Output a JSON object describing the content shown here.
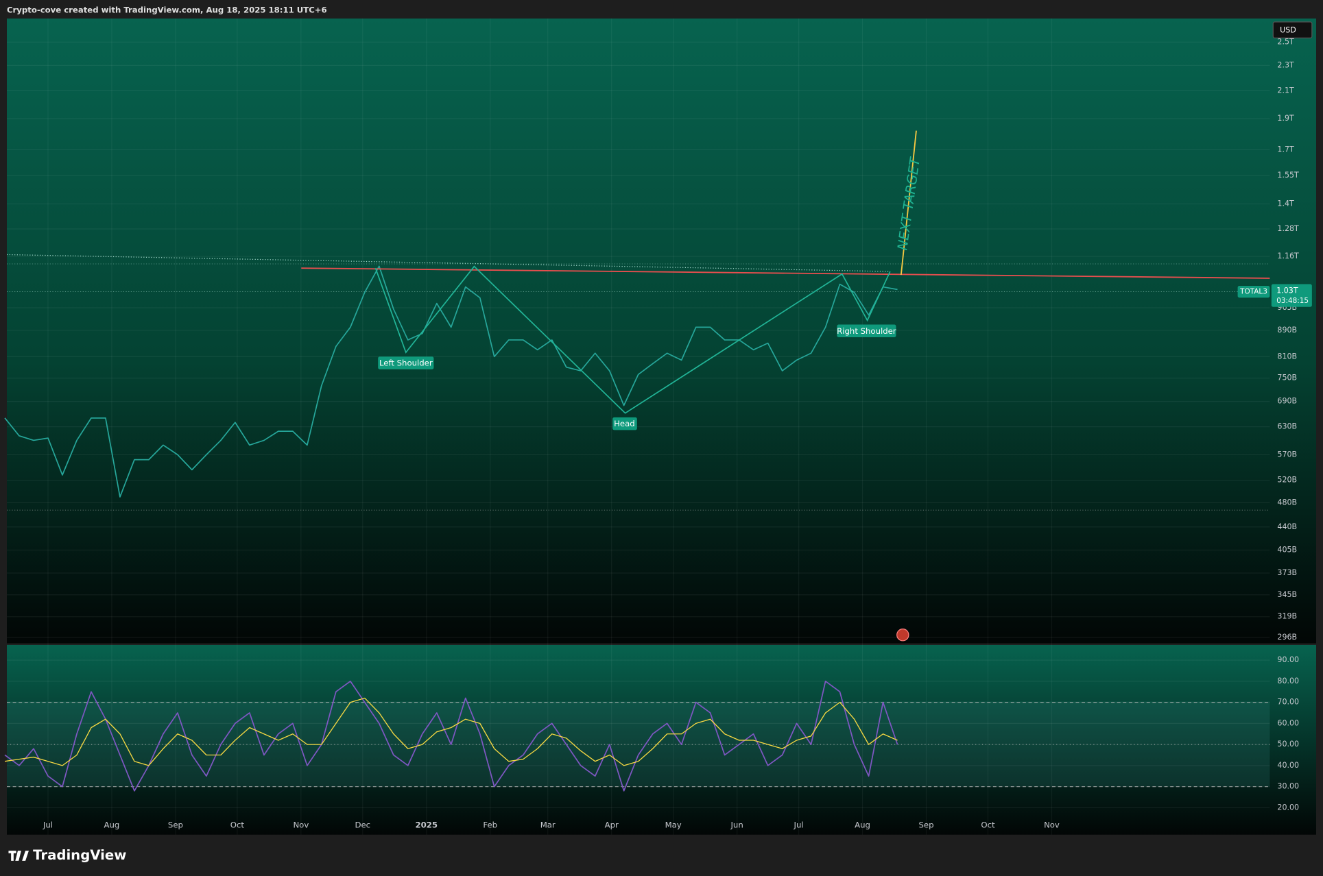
{
  "header": {
    "text": "Crypto-cove created with TradingView.com, Aug 18, 2025 18:11 UTC+6",
    "logo": "TradingView"
  },
  "chart_data": [
    {
      "type": "line",
      "symbol": "TOTAL3",
      "currency": "USD",
      "last_price_label": "1.03T",
      "countdown": "03:48:15",
      "log_scale": true,
      "grid": true,
      "annotations": {
        "left_shoulder": "Left Shoulder",
        "head": "Head",
        "right_shoulder": "Right Shoulder",
        "target": "NEXT TARGET"
      },
      "xlim": [
        "2024-06-11",
        "2026-02-15"
      ],
      "ylim": [
        290000000000,
        2720000000000
      ],
      "yticks": [
        {
          "value": 2500000000000,
          "label": "2.5T"
        },
        {
          "value": 2300000000000,
          "label": "2.3T"
        },
        {
          "value": 2100000000000,
          "label": "2.1T"
        },
        {
          "value": 1900000000000,
          "label": "1.9T"
        },
        {
          "value": 1700000000000,
          "label": "1.7T"
        },
        {
          "value": 1550000000000,
          "label": "1.55T"
        },
        {
          "value": 1400000000000,
          "label": "1.4T"
        },
        {
          "value": 1280000000000,
          "label": "1.28T"
        },
        {
          "value": 1160000000000,
          "label": "1.16T"
        },
        {
          "value": 965000000000,
          "label": "965B"
        },
        {
          "value": 890000000000,
          "label": "890B"
        },
        {
          "value": 810000000000,
          "label": "810B"
        },
        {
          "value": 750000000000,
          "label": "750B"
        },
        {
          "value": 690000000000,
          "label": "690B"
        },
        {
          "value": 630000000000,
          "label": "630B"
        },
        {
          "value": 570000000000,
          "label": "570B"
        },
        {
          "value": 520000000000,
          "label": "520B"
        },
        {
          "value": 480000000000,
          "label": "480B"
        },
        {
          "value": 440000000000,
          "label": "440B"
        },
        {
          "value": 405000000000,
          "label": "405B"
        },
        {
          "value": 373000000000,
          "label": "373B"
        },
        {
          "value": 345000000000,
          "label": "345B"
        },
        {
          "value": 319000000000,
          "label": "319B"
        },
        {
          "value": 296000000000,
          "label": "296B"
        }
      ],
      "x": [
        "2024-06-10",
        "2024-06-17",
        "2024-06-24",
        "2024-07-01",
        "2024-07-08",
        "2024-07-15",
        "2024-07-22",
        "2024-07-29",
        "2024-08-05",
        "2024-08-12",
        "2024-08-19",
        "2024-08-26",
        "2024-09-02",
        "2024-09-09",
        "2024-09-16",
        "2024-09-23",
        "2024-09-30",
        "2024-10-07",
        "2024-10-14",
        "2024-10-21",
        "2024-10-28",
        "2024-11-04",
        "2024-11-11",
        "2024-11-18",
        "2024-11-25",
        "2024-12-02",
        "2024-12-09",
        "2024-12-16",
        "2024-12-23",
        "2024-12-30",
        "2025-01-06",
        "2025-01-13",
        "2025-01-20",
        "2025-01-27",
        "2025-02-03",
        "2025-02-10",
        "2025-02-17",
        "2025-02-24",
        "2025-03-03",
        "2025-03-10",
        "2025-03-17",
        "2025-03-24",
        "2025-03-31",
        "2025-04-07",
        "2025-04-14",
        "2025-04-21",
        "2025-04-28",
        "2025-05-05",
        "2025-05-12",
        "2025-05-19",
        "2025-05-26",
        "2025-06-02",
        "2025-06-09",
        "2025-06-16",
        "2025-06-23",
        "2025-06-30",
        "2025-07-07",
        "2025-07-14",
        "2025-07-21",
        "2025-07-28",
        "2025-08-04",
        "2025-08-11",
        "2025-08-18"
      ],
      "series": [
        {
          "name": "TOTAL3",
          "color": "#26a69a",
          "values": [
            650000000000,
            610000000000,
            600000000000,
            605000000000,
            530000000000,
            600000000000,
            650000000000,
            650000000000,
            490000000000,
            560000000000,
            560000000000,
            590000000000,
            570000000000,
            540000000000,
            570000000000,
            600000000000,
            640000000000,
            590000000000,
            600000000000,
            620000000000,
            620000000000,
            590000000000,
            730000000000,
            840000000000,
            900000000000,
            1020000000000,
            1120000000000,
            960000000000,
            860000000000,
            880000000000,
            980000000000,
            900000000000,
            1040000000000,
            1000000000000,
            810000000000,
            860000000000,
            860000000000,
            830000000000,
            860000000000,
            780000000000,
            770000000000,
            820000000000,
            770000000000,
            680000000000,
            760000000000,
            790000000000,
            820000000000,
            800000000000,
            900000000000,
            900000000000,
            860000000000,
            860000000000,
            830000000000,
            850000000000,
            770000000000,
            800000000000,
            820000000000,
            900000000000,
            1050000000000,
            1020000000000,
            940000000000,
            1040000000000,
            1030000000000
          ]
        }
      ]
    },
    {
      "type": "line",
      "grid": true,
      "xlim": [
        "2024-06-11",
        "2026-02-15"
      ],
      "ylim": [
        7.2,
        97.2
      ],
      "levels": [
        70,
        50,
        30
      ],
      "yticks": [
        {
          "value": 90,
          "label": "90.00"
        },
        {
          "value": 80,
          "label": "80.00"
        },
        {
          "value": 70,
          "label": "70.00"
        },
        {
          "value": 60,
          "label": "60.00"
        },
        {
          "value": 50,
          "label": "50.00"
        },
        {
          "value": 40,
          "label": "40.00"
        },
        {
          "value": 30,
          "label": "30.00"
        },
        {
          "value": 20,
          "label": "20.00"
        }
      ],
      "xticks": [
        {
          "value": "2024-07-01",
          "label": "Jul"
        },
        {
          "value": "2024-08-01",
          "label": "Aug"
        },
        {
          "value": "2024-09-01",
          "label": "Sep"
        },
        {
          "value": "2024-10-01",
          "label": "Oct"
        },
        {
          "value": "2024-11-01",
          "label": "Nov"
        },
        {
          "value": "2024-12-01",
          "label": "Dec"
        },
        {
          "value": "2025-01-01",
          "label": "2025"
        },
        {
          "value": "2025-02-01",
          "label": "Feb"
        },
        {
          "value": "2025-03-01",
          "label": "Mar"
        },
        {
          "value": "2025-04-01",
          "label": "Apr"
        },
        {
          "value": "2025-05-01",
          "label": "May"
        },
        {
          "value": "2025-06-01",
          "label": "Jun"
        },
        {
          "value": "2025-07-01",
          "label": "Jul"
        },
        {
          "value": "2025-08-01",
          "label": "Aug"
        },
        {
          "value": "2025-09-01",
          "label": "Sep"
        },
        {
          "value": "2025-10-01",
          "label": "Oct"
        },
        {
          "value": "2025-11-01",
          "label": "Nov"
        }
      ],
      "x": [
        "2024-06-10",
        "2024-06-17",
        "2024-06-24",
        "2024-07-01",
        "2024-07-08",
        "2024-07-15",
        "2024-07-22",
        "2024-07-29",
        "2024-08-05",
        "2024-08-12",
        "2024-08-19",
        "2024-08-26",
        "2024-09-02",
        "2024-09-09",
        "2024-09-16",
        "2024-09-23",
        "2024-09-30",
        "2024-10-07",
        "2024-10-14",
        "2024-10-21",
        "2024-10-28",
        "2024-11-04",
        "2024-11-11",
        "2024-11-18",
        "2024-11-25",
        "2024-12-02",
        "2024-12-09",
        "2024-12-16",
        "2024-12-23",
        "2024-12-30",
        "2025-01-06",
        "2025-01-13",
        "2025-01-20",
        "2025-01-27",
        "2025-02-03",
        "2025-02-10",
        "2025-02-17",
        "2025-02-24",
        "2025-03-03",
        "2025-03-10",
        "2025-03-17",
        "2025-03-24",
        "2025-03-31",
        "2025-04-07",
        "2025-04-14",
        "2025-04-21",
        "2025-04-28",
        "2025-05-05",
        "2025-05-12",
        "2025-05-19",
        "2025-05-26",
        "2025-06-02",
        "2025-06-09",
        "2025-06-16",
        "2025-06-23",
        "2025-06-30",
        "2025-07-07",
        "2025-07-14",
        "2025-07-21",
        "2025-07-28",
        "2025-08-04",
        "2025-08-11",
        "2025-08-18"
      ],
      "series": [
        {
          "name": "RSI",
          "color": "#7e57c2",
          "values": [
            45,
            40,
            48,
            35,
            30,
            55,
            75,
            62,
            45,
            28,
            40,
            55,
            65,
            45,
            35,
            50,
            60,
            65,
            45,
            55,
            60,
            40,
            50,
            75,
            80,
            70,
            60,
            45,
            40,
            55,
            65,
            50,
            72,
            55,
            30,
            40,
            45,
            55,
            60,
            50,
            40,
            35,
            50,
            28,
            45,
            55,
            60,
            50,
            70,
            65,
            45,
            50,
            55,
            40,
            45,
            60,
            50,
            80,
            75,
            50,
            35,
            70,
            50
          ]
        },
        {
          "name": "RSI-based MA",
          "color": "#f5d742",
          "values": [
            42,
            43,
            44,
            42,
            40,
            45,
            58,
            62,
            55,
            42,
            40,
            48,
            55,
            52,
            45,
            45,
            52,
            58,
            55,
            52,
            55,
            50,
            50,
            60,
            70,
            72,
            65,
            55,
            48,
            50,
            56,
            58,
            62,
            60,
            48,
            42,
            43,
            48,
            55,
            53,
            47,
            42,
            45,
            40,
            42,
            48,
            55,
            55,
            60,
            62,
            55,
            52,
            52,
            50,
            48,
            52,
            54,
            65,
            70,
            62,
            50,
            55,
            52
          ]
        }
      ]
    }
  ]
}
